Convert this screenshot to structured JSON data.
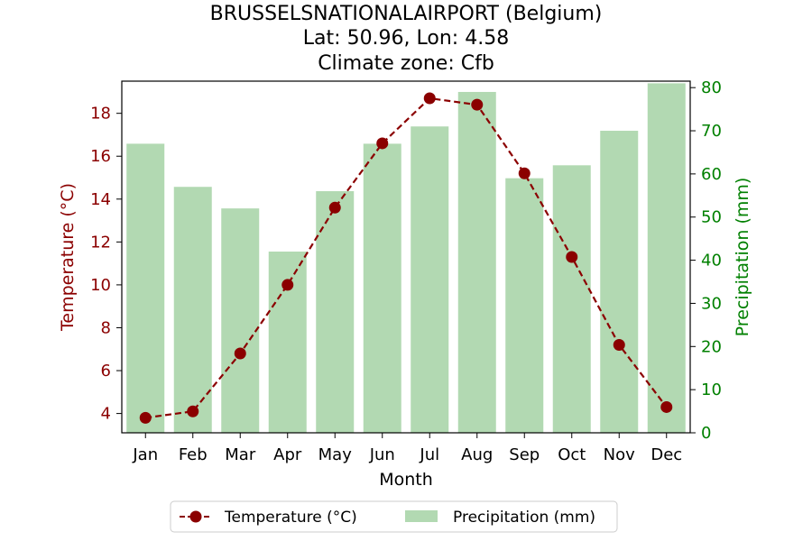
{
  "chart_data": {
    "type": "bar",
    "title": {
      "line1": "BRUSSELSNATIONALAIRPORT (Belgium)",
      "line2": "Lat: 50.96, Lon: 4.58",
      "line3": "Climate zone: Cfb"
    },
    "categories": [
      "Jan",
      "Feb",
      "Mar",
      "Apr",
      "May",
      "Jun",
      "Jul",
      "Aug",
      "Sep",
      "Oct",
      "Nov",
      "Dec"
    ],
    "xlabel": "Month",
    "ylabel_left": "Temperature (°C)",
    "ylabel_right": "Precipitation (mm)",
    "ylim_left": [
      3.1,
      19.5
    ],
    "ylim_right": [
      0,
      81.5
    ],
    "yticks_left": [
      4,
      6,
      8,
      10,
      12,
      14,
      16,
      18
    ],
    "yticks_right": [
      0,
      10,
      20,
      30,
      40,
      50,
      60,
      70,
      80
    ],
    "series": [
      {
        "name": "Temperature (°C)",
        "kind": "line",
        "axis": "left",
        "color": "#8b0000",
        "values": [
          3.8,
          4.1,
          6.8,
          10.0,
          13.6,
          16.6,
          18.7,
          18.4,
          15.2,
          11.3,
          7.2,
          4.3
        ]
      },
      {
        "name": "Precipitation (mm)",
        "kind": "bar",
        "axis": "right",
        "color": "#b2d9b2",
        "values": [
          67,
          57,
          52,
          42,
          56,
          67,
          71,
          79,
          59,
          62,
          70,
          81
        ]
      }
    ],
    "legend": {
      "placement": "bottom-center",
      "temperature_label": "Temperature (°C)",
      "precipitation_label": "Precipitation (mm)"
    },
    "colors": {
      "temperature": "#8b0000",
      "precipitation_bar": "#b2d9b2",
      "precipitation_axis": "#008000"
    }
  }
}
